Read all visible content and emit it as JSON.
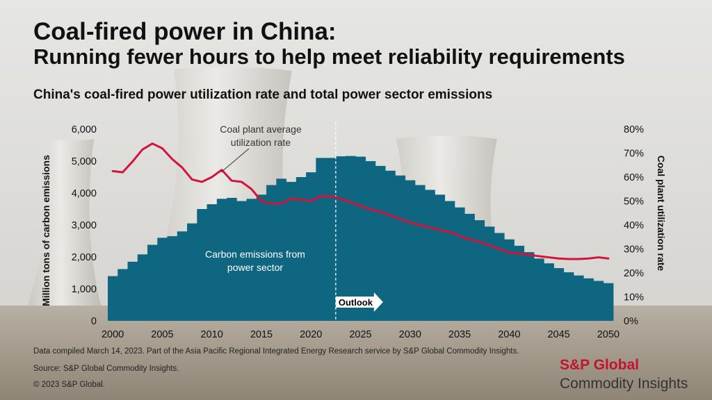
{
  "header": {
    "title": "Coal-fired power in China:",
    "subtitle": "Running fewer hours to help meet reliability requirements",
    "chart_title": "China's coal-fired power utilization rate and total power sector emissions"
  },
  "footer": {
    "note": "Data compiled March 14, 2023. Part of the Asia Pacific Regional Integrated Energy Research service by S&P Global Commodity Insights.",
    "source": "Source: S&P Global Commodity Insights.",
    "copyright": "© 2023 S&P Global."
  },
  "brand": {
    "line1": "S&P Global",
    "line2": "Commodity Insights"
  },
  "colors": {
    "emissions": "#0f6680",
    "utilization": "#d2143c"
  },
  "chart_data": {
    "type": "bar",
    "title": "China's coal-fired power utilization rate and total power sector emissions",
    "ylabel": "Million tons of carbon emissions",
    "y2label": "Coal plant utilization rate",
    "ylim": [
      0,
      6000
    ],
    "y2lim": [
      0,
      80
    ],
    "xlim": [
      2000,
      2050
    ],
    "x_ticks": [
      "2000",
      "2005",
      "2010",
      "2015",
      "2020",
      "2025",
      "2030",
      "2035",
      "2040",
      "2045",
      "2050"
    ],
    "y_ticks": [
      "0",
      "1,000",
      "2,000",
      "3,000",
      "4,000",
      "5,000",
      "6,000"
    ],
    "y2_ticks": [
      "0%",
      "10%",
      "20%",
      "30%",
      "40%",
      "50%",
      "60%",
      "70%",
      "80%"
    ],
    "outlook_year": 2022.5,
    "outlook_label": "Outlook",
    "years": [
      2000,
      2001,
      2002,
      2003,
      2004,
      2005,
      2006,
      2007,
      2008,
      2009,
      2010,
      2011,
      2012,
      2013,
      2014,
      2015,
      2016,
      2017,
      2018,
      2019,
      2020,
      2021,
      2022,
      2023,
      2024,
      2025,
      2026,
      2027,
      2028,
      2029,
      2030,
      2031,
      2032,
      2033,
      2034,
      2035,
      2036,
      2037,
      2038,
      2039,
      2040,
      2041,
      2042,
      2043,
      2044,
      2045,
      2046,
      2047,
      2048,
      2049,
      2050
    ],
    "series": [
      {
        "name": "Carbon emissions from power sector",
        "kind": "bar",
        "axis": "left",
        "values": [
          1400,
          1620,
          1850,
          2080,
          2380,
          2600,
          2650,
          2800,
          3050,
          3500,
          3650,
          3820,
          3850,
          3750,
          3820,
          3950,
          4250,
          4450,
          4350,
          4500,
          4650,
          5100,
          5100,
          5150,
          5160,
          5140,
          5000,
          4850,
          4700,
          4550,
          4400,
          4250,
          4100,
          3950,
          3750,
          3550,
          3350,
          3150,
          2950,
          2750,
          2550,
          2350,
          2150,
          1950,
          1800,
          1650,
          1520,
          1420,
          1330,
          1250,
          1180
        ],
        "label": "Carbon emissions from\npower sector"
      },
      {
        "name": "Coal plant average utilization rate",
        "kind": "line",
        "axis": "right",
        "values": [
          62.5,
          62,
          66.5,
          71.5,
          74,
          72,
          67.5,
          64,
          59,
          58,
          60,
          63,
          58.5,
          58,
          55,
          50,
          49,
          49,
          51,
          50.5,
          50,
          52,
          52,
          51,
          49.5,
          48,
          46.5,
          45.5,
          44,
          42.5,
          41,
          40,
          39,
          38,
          37,
          35.5,
          34,
          33,
          31.5,
          30,
          28.5,
          28,
          27.5,
          27,
          26.5,
          26,
          25.8,
          25.8,
          26,
          26.5,
          26
        ],
        "label": "Coal plant average\nutilization rate"
      }
    ]
  }
}
